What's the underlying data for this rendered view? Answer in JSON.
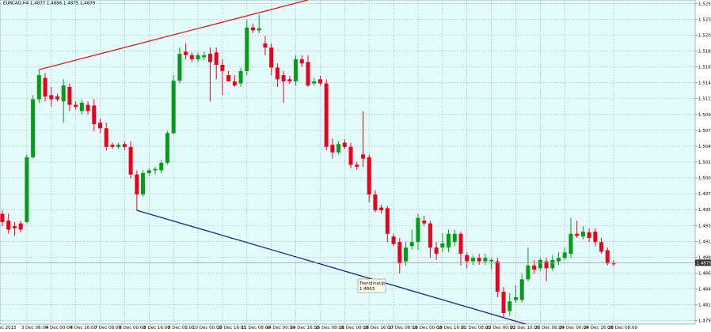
{
  "chart_data": {
    "type": "candlestick",
    "title": "EURCAD,H4  1.4877 1.4886 1.4875 1.4879",
    "ylim": [
      1.479,
      1.526
    ],
    "yticks": [
      1.5255,
      1.5232,
      1.5209,
      1.5186,
      1.5163,
      {
        "value": 1.514,
        "label": "1.5140"
      },
      1.5117,
      1.5094,
      1.5071,
      1.5048,
      1.5025,
      1.5002,
      1.4979,
      1.4956,
      1.4933,
      {
        "value": 1.491,
        "label": "1.4910"
      },
      1.4887,
      1.4864,
      1.4841,
      1.4818,
      1.4795
    ],
    "x_labels": [
      "2 Dec 2015",
      "3 Dec 08:00",
      "4 Dec 00:00",
      "4 Dec 16:00",
      "7 Dec 08:00",
      "8 Dec 00:00",
      "8 Dec 16:00",
      "9 Dec 08:00",
      "10 Dec 00:00",
      "10 Dec 16:00",
      "11 Dec 08:00",
      "14 Dec 00:00",
      "14 Dec 16:00",
      "15 Dec 08:00",
      "16 Dec 00:00",
      "16 Dec 16:00",
      "17 Dec 08:00",
      "18 Dec 00:00",
      "18 Dec 16:00",
      "21 Dec 08:00",
      "22 Dec 00:00",
      "22 Dec 16:00",
      "23 Dec 08:00",
      "24 Dec 00:00",
      "24 Dec 16:00",
      "28 Dec 08:00"
    ],
    "up_color": "#0a9a1a",
    "down_color": "#e8001c",
    "grid": true,
    "open": [
      1.495,
      1.494,
      1.4932,
      1.4936,
      1.4938,
      1.5032,
      1.5116,
      1.5147,
      1.5122,
      1.512,
      1.5113,
      1.5134,
      1.5108,
      1.5099,
      1.5108,
      1.5107,
      1.5082,
      1.5074,
      1.505,
      1.5047,
      1.5051,
      1.5047,
      1.5007,
      1.4978,
      1.5009,
      1.5013,
      1.5013,
      1.5024,
      1.5067,
      1.5143,
      1.5185,
      1.518,
      1.5174,
      1.5177,
      1.5182,
      1.5184,
      1.5166,
      1.5151,
      1.5142,
      1.5139,
      1.5157,
      1.522,
      1.5216,
      1.5197,
      1.5191,
      1.5162,
      1.5151,
      1.5145,
      1.5142,
      1.5174,
      1.517,
      1.5139,
      1.5145,
      1.5139,
      1.505,
      1.5039,
      1.5053,
      1.5047,
      1.5021,
      1.5036,
      1.5032,
      1.4978,
      1.4959,
      1.4958,
      1.4917,
      1.4909,
      1.4881,
      1.4903,
      1.4909,
      1.494,
      1.4936,
      1.4901,
      1.4901,
      1.4901,
      1.4909,
      1.4921,
      1.489,
      1.4881,
      1.4886,
      1.4881,
      1.4881,
      1.4881,
      1.4837,
      1.4809,
      1.4825,
      1.4825,
      1.4855,
      1.4875,
      1.4871,
      1.4881,
      1.4871,
      1.4881,
      1.4886,
      1.4892,
      1.4921,
      1.4917,
      1.4923,
      1.4924,
      1.4909,
      1.4897,
      1.4878
    ],
    "high": [
      1.4955,
      1.495,
      1.4938,
      1.494,
      1.5036,
      1.5122,
      1.5159,
      1.5154,
      1.5134,
      1.5124,
      1.5145,
      1.5139,
      1.5113,
      1.5115,
      1.5113,
      1.5116,
      1.5088,
      1.5082,
      1.5053,
      1.5053,
      1.5055,
      1.5055,
      1.5013,
      1.5013,
      1.5016,
      1.5018,
      1.5028,
      1.507,
      1.5151,
      1.5191,
      1.5197,
      1.5184,
      1.5184,
      1.5185,
      1.5191,
      1.5191,
      1.5174,
      1.5157,
      1.5151,
      1.5162,
      1.5231,
      1.5226,
      1.5239,
      1.5208,
      1.5197,
      1.5168,
      1.5157,
      1.515,
      1.518,
      1.518,
      1.518,
      1.5147,
      1.515,
      1.5145,
      1.5059,
      1.5055,
      1.5058,
      1.5053,
      1.5025,
      1.5099,
      1.5036,
      1.4984,
      1.4963,
      1.4961,
      1.4921,
      1.4915,
      1.4909,
      1.4927,
      1.495,
      1.4947,
      1.494,
      1.4909,
      1.4921,
      1.4927,
      1.4927,
      1.4924,
      1.4894,
      1.489,
      1.4892,
      1.4892,
      1.4886,
      1.4886,
      1.4844,
      1.4835,
      1.4846,
      1.4863,
      1.4901,
      1.4883,
      1.4886,
      1.4886,
      1.489,
      1.4894,
      1.4901,
      1.4944,
      1.494,
      1.4932,
      1.4929,
      1.4929,
      1.4915,
      1.4901,
      1.4883
    ],
    "low": [
      1.4932,
      1.4921,
      1.4918,
      1.4923,
      1.4936,
      1.503,
      1.5111,
      1.5113,
      1.5105,
      1.5113,
      1.5082,
      1.5099,
      1.5101,
      1.5094,
      1.5094,
      1.507,
      1.5067,
      1.5042,
      1.5044,
      1.5044,
      1.5042,
      1.5001,
      1.4955,
      1.4975,
      1.5005,
      1.5007,
      1.5009,
      1.5021,
      1.5065,
      1.5139,
      1.5174,
      1.517,
      1.517,
      1.5173,
      1.5113,
      1.5145,
      1.5122,
      1.5145,
      1.5134,
      1.5134,
      1.5151,
      1.5212,
      1.5212,
      1.518,
      1.5151,
      1.5134,
      1.5111,
      1.5138,
      1.5136,
      1.5163,
      1.5134,
      1.5136,
      1.5136,
      1.5042,
      1.503,
      1.5036,
      1.5044,
      1.5016,
      1.5014,
      1.5018,
      1.4967,
      1.4952,
      1.495,
      1.4909,
      1.4903,
      1.4863,
      1.4875,
      1.4898,
      1.4898,
      1.4932,
      1.4886,
      1.4883,
      1.4894,
      1.4894,
      1.4903,
      1.4875,
      1.4871,
      1.4876,
      1.4876,
      1.4876,
      1.4869,
      1.4829,
      1.48,
      1.4802,
      1.4821,
      1.4821,
      1.4852,
      1.4863,
      1.4867,
      1.4852,
      1.4867,
      1.4876,
      1.4883,
      1.4886,
      1.4915,
      1.4913,
      1.4909,
      1.4903,
      1.4892,
      1.4875,
      1.4874
    ],
    "close": [
      1.4938,
      1.4927,
      1.4929,
      1.4927,
      1.5032,
      1.5116,
      1.5151,
      1.512,
      1.5116,
      1.5116,
      1.5136,
      1.5108,
      1.5105,
      1.5111,
      1.5099,
      1.508,
      1.5074,
      1.5047,
      1.5047,
      1.505,
      1.5047,
      1.5007,
      1.4978,
      1.5009,
      1.5013,
      1.5015,
      1.5024,
      1.5067,
      1.5143,
      1.5182,
      1.518,
      1.5174,
      1.518,
      1.518,
      1.517,
      1.5166,
      1.5157,
      1.5142,
      1.5136,
      1.5157,
      1.522,
      1.5216,
      1.5219,
      1.5191,
      1.5162,
      1.5145,
      1.5142,
      1.5142,
      1.5174,
      1.5168,
      1.5136,
      1.5142,
      1.5139,
      1.5047,
      1.5039,
      1.5051,
      1.5047,
      1.5021,
      1.5018,
      1.503,
      1.4978,
      1.4955,
      1.4955,
      1.4921,
      1.4906,
      1.4878,
      1.4901,
      1.4909,
      1.4944,
      1.4936,
      1.4901,
      1.4892,
      1.4907,
      1.4921,
      1.4921,
      1.4892,
      1.4881,
      1.4886,
      1.4881,
      1.4886,
      1.4883,
      1.4837,
      1.4806,
      1.4823,
      1.4829,
      1.4855,
      1.4875,
      1.4869,
      1.4883,
      1.4871,
      1.4883,
      1.4886,
      1.4894,
      1.4921,
      1.4918,
      1.4924,
      1.4915,
      1.4909,
      1.4895,
      1.4878,
      1.4877
    ],
    "current_price": {
      "value": 1.4879,
      "label": "1.4879"
    },
    "trendlines": [
      {
        "color": "#cc2020",
        "points": [
          [
            6,
            1.5159
          ],
          [
            50,
            1.526
          ]
        ]
      },
      {
        "color": "#1a237e",
        "points": [
          [
            22,
            1.4955
          ],
          [
            86,
            1.4789
          ]
        ]
      }
    ],
    "tooltip": {
      "name": "TrendlineUp",
      "value": "1.4863"
    }
  }
}
